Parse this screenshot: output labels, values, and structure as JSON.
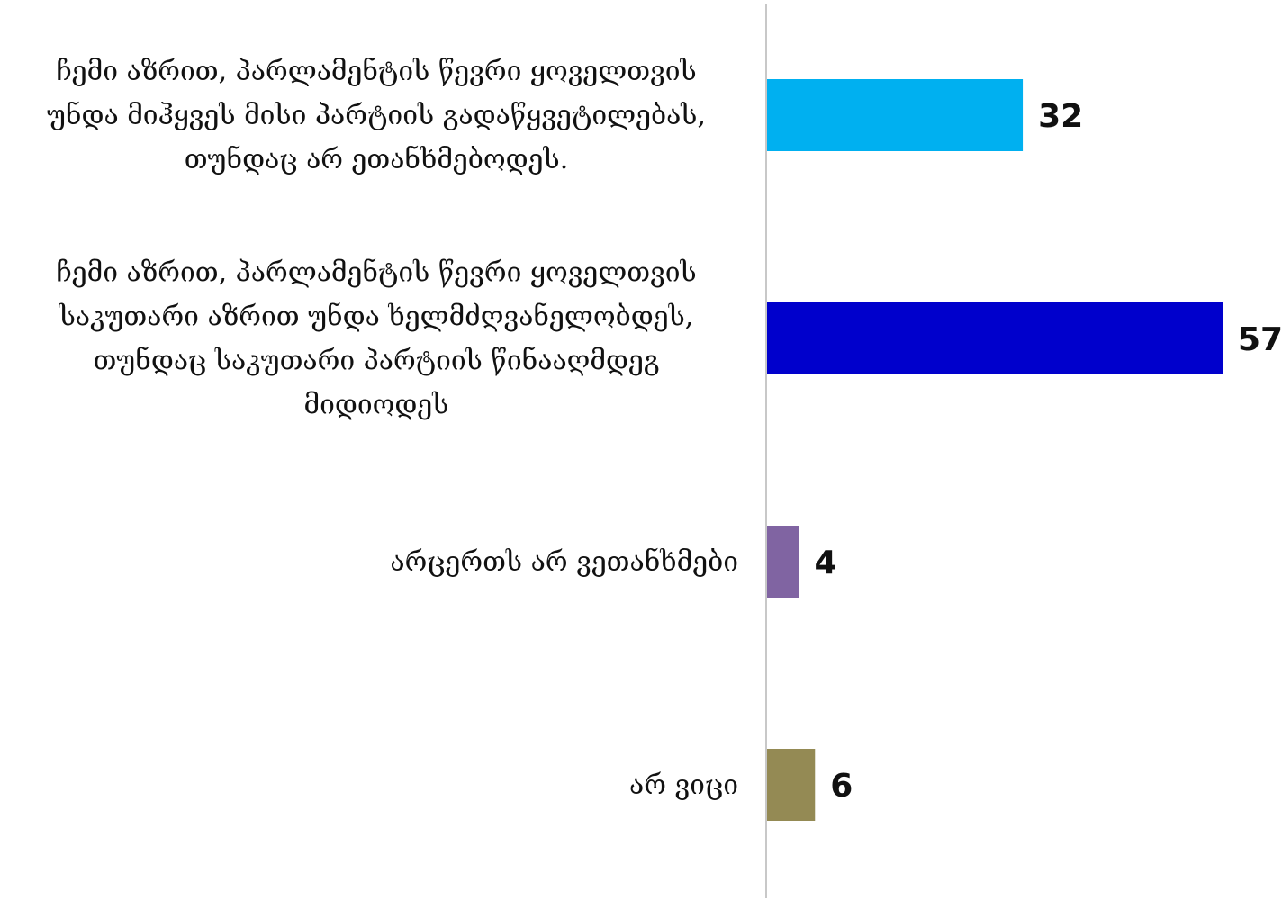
{
  "chart_data": {
    "type": "bar",
    "orientation": "horizontal",
    "categories": [
      "ჩემი აზრით, პარლამენტის წევრი ყოველთვის უნდა მიჰყვეს მისი პარტიის გადაწყვეტილებას, თუნდაც არ ეთანხმებოდეს.",
      "ჩემი აზრით, პარლამენტის წევრი ყოველთვის საკუთარი აზრით უნდა ხელმძღვანელობდეს, თუნდაც საკუთარი პარტიის წინააღმდეგ მიდიოდეს",
      "არცერთს არ ვეთანხმები",
      "არ ვიცი"
    ],
    "category_lines": [
      [
        "ჩემი აზრით, პარლამენტის წევრი ყოველთვის",
        "უნდა მიჰყვეს მისი პარტიის გადაწყვეტილებას,",
        "თუნდაც არ ეთანხმებოდეს."
      ],
      [
        "ჩემი აზრით, პარლამენტის წევრი ყოველთვის",
        "საკუთარი აზრით უნდა ხელმძღვანელობდეს,",
        "თუნდაც საკუთარი პარტიის წინააღმდეგ",
        "მიდიოდეს"
      ],
      [
        "არცერთს არ ვეთანხმები"
      ],
      [
        "არ ვიცი"
      ]
    ],
    "values": [
      32,
      57,
      4,
      6
    ],
    "value_labels": [
      "32",
      "57",
      "4",
      "6"
    ],
    "colors": [
      "#00B0F0",
      "#0000CC",
      "#8064A2",
      "#948A54"
    ],
    "title": "",
    "xlabel": "",
    "ylabel": "",
    "xlim": [
      0,
      57
    ],
    "grid": false,
    "legend": "none"
  }
}
